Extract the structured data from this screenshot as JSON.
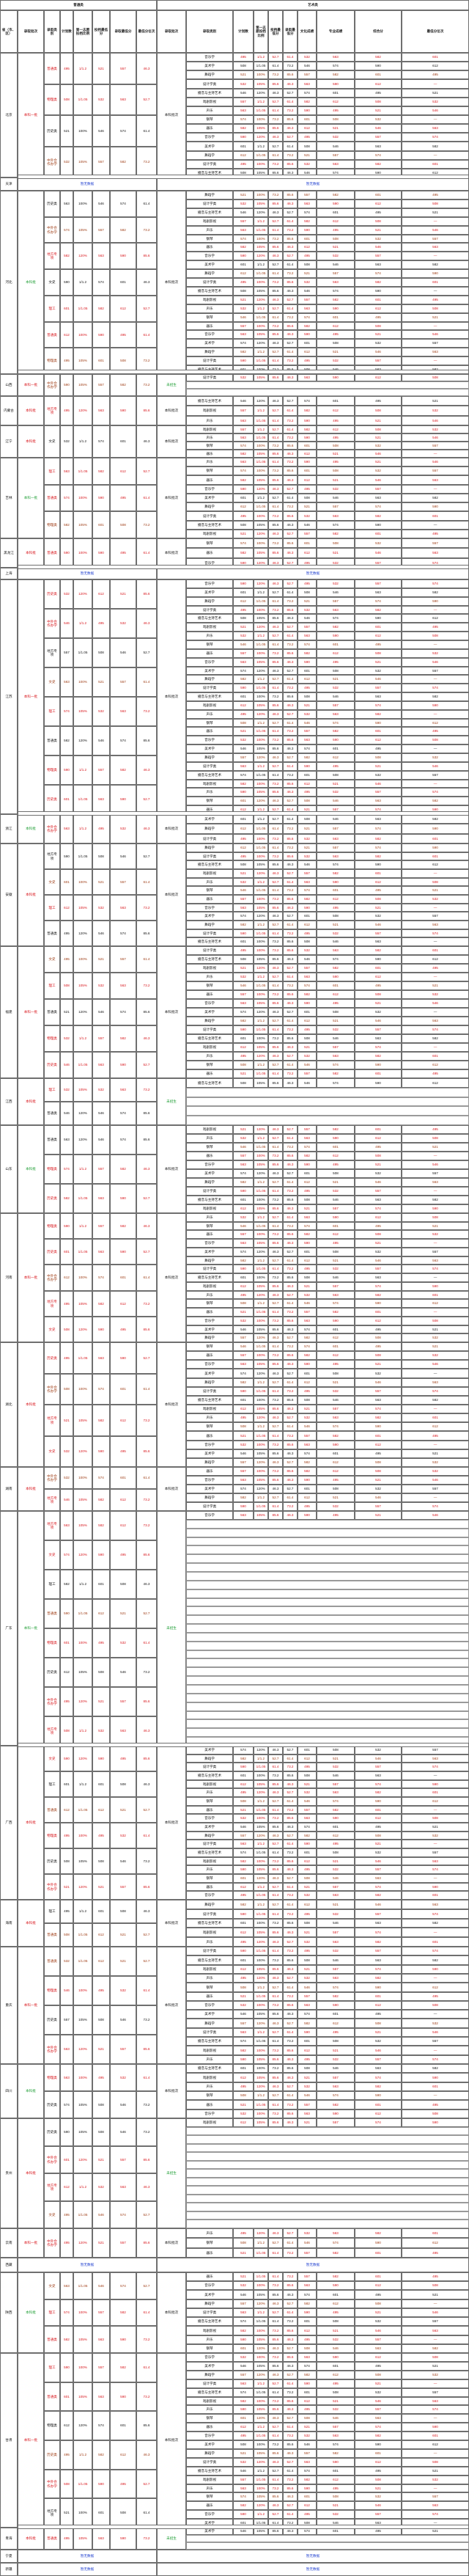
{
  "header": {
    "title_left": "普通类",
    "title_right": "艺术类",
    "col_province": "省（市、区）",
    "col_batch": "录取批次",
    "col_type": "录取类别",
    "col_plan": "计划数",
    "col_first_ratio": "第一志愿投档比例",
    "col_min_a": "投档最低分",
    "col_min_b": "录取最低分",
    "col_rank": "最低分位次",
    "col_culture": "文化成绩",
    "col_major": "专业成绩",
    "col_composite": "综合分"
  },
  "regions": {
    "beijing": "北京",
    "tianjin": "天津",
    "hebei": "河北",
    "shanxi": "山西",
    "neimenggu": "内蒙古",
    "liaoning": "辽宁",
    "jilin": "吉林",
    "heilongjiang": "黑龙江",
    "shanghai": "上海",
    "jiangsu": "江苏",
    "zhejiang": "浙江",
    "anhui": "安徽",
    "fujian": "福建",
    "jiangxi": "江西",
    "shandong": "山东",
    "henan": "河南",
    "hubei": "湖北",
    "hunan": "湖南",
    "guangdong": "广东",
    "guangxi": "广西",
    "hainan": "海南",
    "chongqing": "重庆",
    "sichuan": "四川",
    "guizhou": "贵州",
    "yunnan": "云南",
    "xizang": "西藏",
    "shaanxi": "陕西",
    "gansu": "甘肃",
    "qinghai": "青海",
    "ningxia": "宁夏",
    "xinjiang": "新疆"
  },
  "labels": {
    "benke": "本科批",
    "benke_pi": "本科批次",
    "benke_first": "本科一批",
    "benke_second": "本科二批",
    "ordinary": "普通类",
    "physics": "物理类",
    "history": "历史类",
    "arts": "文史",
    "science": "理工",
    "coop": "中外合作办学",
    "local_special": "地方专项",
    "not_enrolled": "未招生",
    "dash": "—",
    "comprehensive_eval": "综合评价",
    "music": "音乐学",
    "fine_art": "美术学",
    "dance": "舞蹈学",
    "design": "设计学类",
    "broadcast": "播音与主持艺术",
    "drama": "戏剧影视",
    "same_batch": "同批次",
    "vocal": "声乐",
    "piano": "钢琴",
    "instrument": "器乐"
  },
  "footnotes": {
    "no_data": "暂无数据",
    "see_above": "同上"
  },
  "samples": {
    "n1": "495",
    "n2": "508",
    "n3": "521",
    "n4": "532",
    "n5": "546",
    "n6": "557",
    "n7": "563",
    "n8": "574",
    "n9": "582",
    "n10": "590",
    "n11": "601",
    "n12": "612",
    "r1": "46.3",
    "r2": "52.7",
    "r3": "61.4",
    "r4": "73.2",
    "r5": "85.6",
    "k1": "1/1.2",
    "k2": "1/1.05",
    "k3": "100%",
    "k4": "105%",
    "k5": "120%"
  }
}
